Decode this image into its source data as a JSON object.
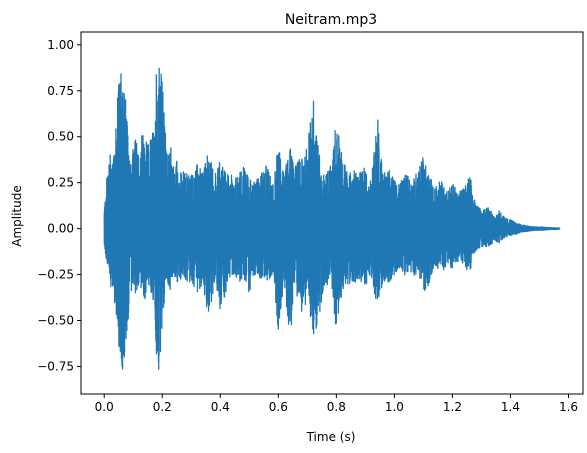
{
  "chart_data": {
    "type": "line",
    "title": "Neitram.mp3",
    "xlabel": "Time (s)",
    "ylabel": "Amplitude",
    "xlim": [
      -0.08,
      1.65
    ],
    "ylim": [
      -0.9,
      1.07
    ],
    "xticks": [
      0.0,
      0.2,
      0.4,
      0.6,
      0.8,
      1.0,
      1.2,
      1.4,
      1.6
    ],
    "xtick_labels": [
      "0.0",
      "0.2",
      "0.4",
      "0.6",
      "0.8",
      "1.0",
      "1.2",
      "1.4",
      "1.6"
    ],
    "yticks": [
      -0.75,
      -0.5,
      -0.25,
      0.0,
      0.25,
      0.5,
      0.75,
      1.0
    ],
    "ytick_labels": [
      "−0.75",
      "−0.50",
      "−0.25",
      "0.00",
      "0.25",
      "0.50",
      "0.75",
      "1.00"
    ],
    "grid": false,
    "series": [
      {
        "color": "#1f77b4",
        "x": [
          0.0,
          0.01,
          0.02,
          0.03,
          0.04,
          0.05,
          0.06,
          0.07,
          0.08,
          0.09,
          0.1,
          0.11,
          0.12,
          0.13,
          0.14,
          0.15,
          0.16,
          0.17,
          0.18,
          0.19,
          0.2,
          0.21,
          0.22,
          0.23,
          0.24,
          0.25,
          0.26,
          0.27,
          0.28,
          0.29,
          0.3,
          0.32,
          0.34,
          0.36,
          0.38,
          0.4,
          0.42,
          0.44,
          0.46,
          0.48,
          0.5,
          0.52,
          0.54,
          0.56,
          0.58,
          0.6,
          0.62,
          0.64,
          0.66,
          0.68,
          0.7,
          0.72,
          0.74,
          0.76,
          0.78,
          0.8,
          0.82,
          0.84,
          0.86,
          0.88,
          0.9,
          0.92,
          0.94,
          0.96,
          0.98,
          1.0,
          1.02,
          1.04,
          1.06,
          1.08,
          1.1,
          1.12,
          1.14,
          1.16,
          1.18,
          1.2,
          1.22,
          1.24,
          1.26,
          1.28,
          1.3,
          1.32,
          1.34,
          1.36,
          1.38,
          1.4,
          1.42,
          1.44,
          1.46,
          1.48,
          1.5,
          1.52,
          1.54,
          1.56,
          1.57
        ],
        "upper": [
          0.1,
          0.3,
          0.42,
          0.4,
          0.6,
          0.98,
          0.85,
          0.8,
          0.55,
          0.4,
          0.45,
          0.5,
          0.42,
          0.55,
          0.5,
          0.45,
          0.5,
          0.55,
          0.9,
          1.0,
          0.8,
          0.55,
          0.4,
          0.45,
          0.35,
          0.38,
          0.3,
          0.32,
          0.3,
          0.32,
          0.3,
          0.35,
          0.32,
          0.42,
          0.3,
          0.38,
          0.3,
          0.3,
          0.28,
          0.35,
          0.3,
          0.28,
          0.3,
          0.35,
          0.25,
          0.45,
          0.3,
          0.45,
          0.35,
          0.4,
          0.45,
          0.72,
          0.42,
          0.3,
          0.35,
          0.6,
          0.4,
          0.3,
          0.32,
          0.3,
          0.35,
          0.25,
          0.65,
          0.3,
          0.35,
          0.28,
          0.25,
          0.3,
          0.25,
          0.32,
          0.4,
          0.3,
          0.22,
          0.28,
          0.2,
          0.25,
          0.2,
          0.23,
          0.3,
          0.15,
          0.1,
          0.12,
          0.08,
          0.1,
          0.06,
          0.05,
          0.03,
          0.02,
          0.015,
          0.01,
          0.01,
          0.008,
          0.005,
          0.005,
          0.003
        ],
        "lower": [
          -0.1,
          -0.2,
          -0.3,
          -0.35,
          -0.45,
          -0.65,
          -0.82,
          -0.85,
          -0.55,
          -0.35,
          -0.4,
          -0.35,
          -0.3,
          -0.35,
          -0.4,
          -0.3,
          -0.35,
          -0.4,
          -0.85,
          -0.82,
          -0.55,
          -0.35,
          -0.3,
          -0.35,
          -0.25,
          -0.3,
          -0.3,
          -0.25,
          -0.28,
          -0.3,
          -0.3,
          -0.35,
          -0.3,
          -0.5,
          -0.3,
          -0.45,
          -0.35,
          -0.25,
          -0.28,
          -0.3,
          -0.35,
          -0.25,
          -0.28,
          -0.3,
          -0.25,
          -0.55,
          -0.3,
          -0.6,
          -0.35,
          -0.45,
          -0.4,
          -0.6,
          -0.5,
          -0.3,
          -0.32,
          -0.55,
          -0.35,
          -0.3,
          -0.3,
          -0.28,
          -0.32,
          -0.25,
          -0.5,
          -0.28,
          -0.3,
          -0.25,
          -0.22,
          -0.28,
          -0.25,
          -0.28,
          -0.35,
          -0.3,
          -0.2,
          -0.25,
          -0.2,
          -0.22,
          -0.18,
          -0.2,
          -0.25,
          -0.12,
          -0.1,
          -0.1,
          -0.08,
          -0.08,
          -0.05,
          -0.04,
          -0.03,
          -0.02,
          -0.015,
          -0.01,
          -0.01,
          -0.008,
          -0.005,
          -0.005,
          -0.003
        ]
      }
    ]
  }
}
